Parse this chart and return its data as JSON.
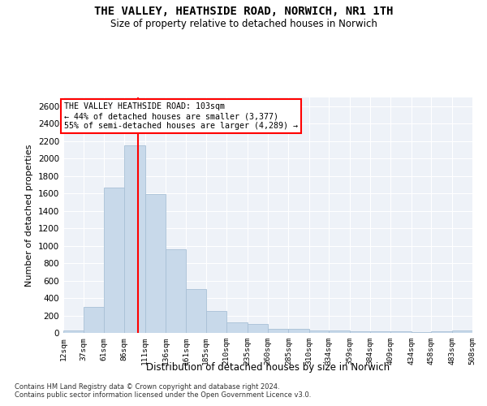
{
  "title": "THE VALLEY, HEATHSIDE ROAD, NORWICH, NR1 1TH",
  "subtitle": "Size of property relative to detached houses in Norwich",
  "xlabel": "Distribution of detached houses by size in Norwich",
  "ylabel": "Number of detached properties",
  "bar_color": "#c8d9ea",
  "bar_edge_color": "#a8c0d6",
  "red_line_x": 103,
  "bin_edges": [
    12,
    37,
    61,
    86,
    111,
    136,
    161,
    185,
    210,
    235,
    260,
    285,
    310,
    334,
    359,
    384,
    409,
    434,
    458,
    483,
    508
  ],
  "bar_heights": [
    25,
    300,
    1670,
    2150,
    1590,
    960,
    500,
    250,
    120,
    100,
    50,
    50,
    30,
    30,
    20,
    20,
    20,
    10,
    20,
    25
  ],
  "tick_labels": [
    "12sqm",
    "37sqm",
    "61sqm",
    "86sqm",
    "111sqm",
    "136sqm",
    "161sqm",
    "185sqm",
    "210sqm",
    "235sqm",
    "260sqm",
    "285sqm",
    "310sqm",
    "334sqm",
    "359sqm",
    "384sqm",
    "409sqm",
    "434sqm",
    "458sqm",
    "483sqm",
    "508sqm"
  ],
  "ylim": [
    0,
    2700
  ],
  "yticks": [
    0,
    200,
    400,
    600,
    800,
    1000,
    1200,
    1400,
    1600,
    1800,
    2000,
    2200,
    2400,
    2600
  ],
  "annotation_title": "THE VALLEY HEATHSIDE ROAD: 103sqm",
  "annotation_line1": "← 44% of detached houses are smaller (3,377)",
  "annotation_line2": "55% of semi-detached houses are larger (4,289) →",
  "footer1": "Contains HM Land Registry data © Crown copyright and database right 2024.",
  "footer2": "Contains public sector information licensed under the Open Government Licence v3.0.",
  "plot_bg_color": "#eef2f8"
}
